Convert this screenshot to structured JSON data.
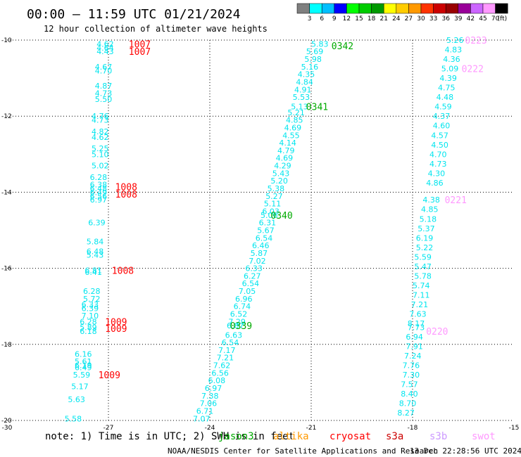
{
  "header": {
    "title": "00:00 – 11:59 UTC 01/21/2024",
    "subtitle": "12 hour collection of altimeter wave heights"
  },
  "colorbar": {
    "labels": [
      "3",
      "6",
      "9",
      "12",
      "15",
      "18",
      "21",
      "24",
      "27",
      "30",
      "33",
      "36",
      "39",
      "42",
      "45",
      "70"
    ],
    "unit": "(ft)",
    "colors": [
      "#7f7f7f",
      "#00ffff",
      "#00bfff",
      "#0000ff",
      "#00ff00",
      "#00cc00",
      "#009900",
      "#ffff00",
      "#ffcc00",
      "#ff9900",
      "#ff3300",
      "#cc0000",
      "#990000",
      "#990099",
      "#cc66ff",
      "#ff99ff",
      "#000000"
    ]
  },
  "footer": {
    "note": "note:  1) Time is in UTC;  2) SWH is in feet",
    "credit": "NOAA/NESDIS Center for Satellite Applications and Research",
    "timestamp": "13 Dec 22:28:56 UTC 2024"
  },
  "legend": [
    {
      "name": "jason3",
      "color": "#00aa00"
    },
    {
      "name": "altika",
      "color": "#ff9900"
    },
    {
      "name": "cryosat",
      "color": "#ff0000"
    },
    {
      "name": "s3a",
      "color": "#cc0000"
    },
    {
      "name": "s3b",
      "color": "#cc99ff"
    },
    {
      "name": "swot",
      "color": "#ff99ff"
    }
  ],
  "chart_data": {
    "type": "scatter",
    "title": "00:00 – 11:59 UTC 01/21/2024",
    "xlim": [
      -30,
      -15
    ],
    "ylim": [
      -20,
      -10
    ],
    "x_ticks": [
      "-30",
      "-27",
      "-24",
      "-21",
      "-18",
      "-15"
    ],
    "y_ticks": [
      "-10",
      "-12",
      "-14",
      "-16",
      "-18",
      "-20"
    ],
    "grid": true,
    "value_color": "#00e5ee",
    "time_colors": {
      "cryosat": "#ff0000",
      "jason3": "#00aa00",
      "swot": "#ff99ff"
    },
    "tracks": [
      {
        "satellite": "cryosat",
        "time_labels": [
          {
            "text": "1007",
            "x": -26.4,
            "y": -10.1
          },
          {
            "text": "1007",
            "x": -26.4,
            "y": -10.3
          },
          {
            "text": "1008",
            "x": -26.8,
            "y": -13.85
          },
          {
            "text": "1008",
            "x": -26.8,
            "y": -14.05
          },
          {
            "text": "1008",
            "x": -26.9,
            "y": -16.05
          },
          {
            "text": "1009",
            "x": -27.1,
            "y": -17.4
          },
          {
            "text": "1009",
            "x": -27.1,
            "y": -17.58
          },
          {
            "text": "1009",
            "x": -27.3,
            "y": -18.8
          }
        ],
        "values": [
          {
            "v": "4.62",
            "x": -27.35,
            "y": -10.1
          },
          {
            "v": "4.64",
            "x": -27.35,
            "y": -10.2
          },
          {
            "v": "4.43",
            "x": -27.35,
            "y": -10.3
          },
          {
            "v": "4.67",
            "x": -27.4,
            "y": -10.7
          },
          {
            "v": "4.70",
            "x": -27.4,
            "y": -10.8
          },
          {
            "v": "4.87",
            "x": -27.4,
            "y": -11.2
          },
          {
            "v": "4.73",
            "x": -27.4,
            "y": -11.4
          },
          {
            "v": "5.50",
            "x": -27.4,
            "y": -11.55
          },
          {
            "v": "4.76",
            "x": -27.5,
            "y": -12.0
          },
          {
            "v": "4.73",
            "x": -27.5,
            "y": -12.1
          },
          {
            "v": "4.82",
            "x": -27.5,
            "y": -12.4
          },
          {
            "v": "4.62",
            "x": -27.5,
            "y": -12.55
          },
          {
            "v": "5.25",
            "x": -27.5,
            "y": -12.85
          },
          {
            "v": "5.10",
            "x": -27.5,
            "y": -13.0
          },
          {
            "v": "5.02",
            "x": -27.5,
            "y": -13.3
          },
          {
            "v": "6.28",
            "x": -27.55,
            "y": -13.6
          },
          {
            "v": "6.38",
            "x": -27.55,
            "y": -13.8
          },
          {
            "v": "6.48",
            "x": -27.55,
            "y": -13.9
          },
          {
            "v": "6.49",
            "x": -27.55,
            "y": -14.0
          },
          {
            "v": "6.56",
            "x": -27.55,
            "y": -14.1
          },
          {
            "v": "6.97",
            "x": -27.55,
            "y": -14.2
          },
          {
            "v": "6.39",
            "x": -27.6,
            "y": -14.8
          },
          {
            "v": "5.84",
            "x": -27.65,
            "y": -15.3
          },
          {
            "v": "6.48",
            "x": -27.65,
            "y": -15.55
          },
          {
            "v": "5.43",
            "x": -27.65,
            "y": -15.65
          },
          {
            "v": "6.81",
            "x": -27.7,
            "y": -16.05
          },
          {
            "v": "6.41",
            "x": -27.7,
            "y": -16.1
          },
          {
            "v": "6.28",
            "x": -27.75,
            "y": -16.6
          },
          {
            "v": "5.72",
            "x": -27.75,
            "y": -16.8
          },
          {
            "v": "6.33",
            "x": -27.8,
            "y": -16.95
          },
          {
            "v": "6.39",
            "x": -27.8,
            "y": -17.05
          },
          {
            "v": "7.10",
            "x": -27.8,
            "y": -17.25
          },
          {
            "v": "6.28",
            "x": -27.85,
            "y": -17.4
          },
          {
            "v": "5.89",
            "x": -27.85,
            "y": -17.55
          },
          {
            "v": "6.18",
            "x": -27.85,
            "y": -17.65
          },
          {
            "v": "6.16",
            "x": -28.0,
            "y": -18.25
          },
          {
            "v": "5.61",
            "x": -28.0,
            "y": -18.45
          },
          {
            "v": "6.49",
            "x": -28.0,
            "y": -18.6
          },
          {
            "v": "6.19",
            "x": -28.0,
            "y": -18.55
          },
          {
            "v": "5.59",
            "x": -28.05,
            "y": -18.8
          },
          {
            "v": "5.17",
            "x": -28.1,
            "y": -19.1
          },
          {
            "v": "5.63",
            "x": -28.2,
            "y": -19.45
          },
          {
            "v": "5.58",
            "x": -28.3,
            "y": -19.95
          }
        ]
      },
      {
        "satellite": "jason3",
        "time_labels": [
          {
            "text": "0342",
            "x": -20.4,
            "y": -10.15
          },
          {
            "text": "0341",
            "x": -21.15,
            "y": -11.75
          },
          {
            "text": "0340",
            "x": -22.2,
            "y": -14.6
          },
          {
            "text": "0339",
            "x": -23.4,
            "y": -17.5
          }
        ],
        "values": [
          {
            "v": "5.83",
            "x": -21.0,
            "y": -10.1
          },
          {
            "v": "5.69",
            "x": -21.15,
            "y": -10.3
          },
          {
            "v": "5.98",
            "x": -21.2,
            "y": -10.5
          },
          {
            "v": "5.16",
            "x": -21.3,
            "y": -10.7
          },
          {
            "v": "4.35",
            "x": -21.4,
            "y": -10.9
          },
          {
            "v": "4.84",
            "x": -21.45,
            "y": -11.1
          },
          {
            "v": "4.91",
            "x": -21.5,
            "y": -11.3
          },
          {
            "v": "5.53",
            "x": -21.55,
            "y": -11.5
          },
          {
            "v": "5.13",
            "x": -21.6,
            "y": -11.75
          },
          {
            "v": "5.21",
            "x": -21.7,
            "y": -11.9
          },
          {
            "v": "4.85",
            "x": -21.75,
            "y": -12.1
          },
          {
            "v": "4.69",
            "x": -21.8,
            "y": -12.3
          },
          {
            "v": "4.55",
            "x": -21.85,
            "y": -12.5
          },
          {
            "v": "4.14",
            "x": -21.95,
            "y": -12.7
          },
          {
            "v": "4.79",
            "x": -22.0,
            "y": -12.9
          },
          {
            "v": "4.69",
            "x": -22.05,
            "y": -13.1
          },
          {
            "v": "4.29",
            "x": -22.1,
            "y": -13.3
          },
          {
            "v": "5.43",
            "x": -22.15,
            "y": -13.5
          },
          {
            "v": "5.20",
            "x": -22.2,
            "y": -13.7
          },
          {
            "v": "5.38",
            "x": -22.3,
            "y": -13.9
          },
          {
            "v": "5.27",
            "x": -22.35,
            "y": -14.1
          },
          {
            "v": "5.11",
            "x": -22.4,
            "y": -14.3
          },
          {
            "v": "6.03",
            "x": -22.45,
            "y": -14.5
          },
          {
            "v": "5.06",
            "x": -22.5,
            "y": -14.6
          },
          {
            "v": "6.31",
            "x": -22.55,
            "y": -14.8
          },
          {
            "v": "5.67",
            "x": -22.6,
            "y": -15.0
          },
          {
            "v": "6.54",
            "x": -22.65,
            "y": -15.2
          },
          {
            "v": "6.46",
            "x": -22.75,
            "y": -15.4
          },
          {
            "v": "5.87",
            "x": -22.8,
            "y": -15.6
          },
          {
            "v": "7.02",
            "x": -22.85,
            "y": -15.8
          },
          {
            "v": "6.33",
            "x": -22.95,
            "y": -16.0
          },
          {
            "v": "6.27",
            "x": -23.0,
            "y": -16.2
          },
          {
            "v": "6.54",
            "x": -23.05,
            "y": -16.4
          },
          {
            "v": "7.05",
            "x": -23.15,
            "y": -16.6
          },
          {
            "v": "6.96",
            "x": -23.25,
            "y": -16.8
          },
          {
            "v": "6.74",
            "x": -23.3,
            "y": -17.0
          },
          {
            "v": "6.52",
            "x": -23.4,
            "y": -17.2
          },
          {
            "v": "7.29",
            "x": -23.45,
            "y": -17.4
          },
          {
            "v": "6.87",
            "x": -23.5,
            "y": -17.5
          },
          {
            "v": "6.63",
            "x": -23.55,
            "y": -17.75
          },
          {
            "v": "6.54",
            "x": -23.65,
            "y": -17.95
          },
          {
            "v": "7.17",
            "x": -23.75,
            "y": -18.15
          },
          {
            "v": "7.21",
            "x": -23.8,
            "y": -18.35
          },
          {
            "v": "7.62",
            "x": -23.9,
            "y": -18.55
          },
          {
            "v": "6.56",
            "x": -23.95,
            "y": -18.75
          },
          {
            "v": "6.08",
            "x": -24.05,
            "y": -18.95
          },
          {
            "v": "6.97",
            "x": -24.15,
            "y": -19.15
          },
          {
            "v": "7.38",
            "x": -24.25,
            "y": -19.35
          },
          {
            "v": "7.06",
            "x": -24.3,
            "y": -19.55
          },
          {
            "v": "6.71",
            "x": -24.4,
            "y": -19.75
          },
          {
            "v": "7.07",
            "x": -24.5,
            "y": -19.95
          }
        ]
      },
      {
        "satellite": "swot",
        "time_labels": [
          {
            "text": "0223",
            "x": -16.45,
            "y": -10.0
          },
          {
            "text": "0222",
            "x": -16.55,
            "y": -10.75
          },
          {
            "text": "0221",
            "x": -17.05,
            "y": -14.2
          },
          {
            "text": "0220",
            "x": -17.6,
            "y": -17.65
          }
        ],
        "values": [
          {
            "v": "5.26",
            "x": -17.0,
            "y": -10.0
          },
          {
            "v": "4.83",
            "x": -17.05,
            "y": -10.25
          },
          {
            "v": "4.36",
            "x": -17.1,
            "y": -10.5
          },
          {
            "v": "5.09",
            "x": -17.15,
            "y": -10.75
          },
          {
            "v": "4.39",
            "x": -17.2,
            "y": -11.0
          },
          {
            "v": "4.75",
            "x": -17.25,
            "y": -11.25
          },
          {
            "v": "4.48",
            "x": -17.3,
            "y": -11.5
          },
          {
            "v": "4.59",
            "x": -17.35,
            "y": -11.75
          },
          {
            "v": "4.37",
            "x": -17.4,
            "y": -12.0
          },
          {
            "v": "4.60",
            "x": -17.4,
            "y": -12.25
          },
          {
            "v": "4.57",
            "x": -17.45,
            "y": -12.5
          },
          {
            "v": "4.50",
            "x": -17.45,
            "y": -12.75
          },
          {
            "v": "4.70",
            "x": -17.5,
            "y": -13.0
          },
          {
            "v": "4.73",
            "x": -17.5,
            "y": -13.25
          },
          {
            "v": "4.30",
            "x": -17.55,
            "y": -13.5
          },
          {
            "v": "4.86",
            "x": -17.6,
            "y": -13.75
          },
          {
            "v": "4.38",
            "x": -17.7,
            "y": -14.2
          },
          {
            "v": "4.85",
            "x": -17.75,
            "y": -14.45
          },
          {
            "v": "5.18",
            "x": -17.8,
            "y": -14.7
          },
          {
            "v": "5.37",
            "x": -17.85,
            "y": -14.95
          },
          {
            "v": "6.19",
            "x": -17.9,
            "y": -15.2
          },
          {
            "v": "5.22",
            "x": -17.9,
            "y": -15.45
          },
          {
            "v": "5.59",
            "x": -17.95,
            "y": -15.7
          },
          {
            "v": "5.47",
            "x": -17.95,
            "y": -15.95
          },
          {
            "v": "5.78",
            "x": -17.95,
            "y": -16.2
          },
          {
            "v": "5.74",
            "x": -18.0,
            "y": -16.45
          },
          {
            "v": "7.11",
            "x": -18.0,
            "y": -16.7
          },
          {
            "v": "7.21",
            "x": -18.05,
            "y": -16.95
          },
          {
            "v": "7.63",
            "x": -18.1,
            "y": -17.2
          },
          {
            "v": "8.17",
            "x": -18.15,
            "y": -17.45
          },
          {
            "v": "7.73",
            "x": -18.15,
            "y": -17.55
          },
          {
            "v": "6.94",
            "x": -18.2,
            "y": -17.8
          },
          {
            "v": "7.91",
            "x": -18.2,
            "y": -18.05
          },
          {
            "v": "7.24",
            "x": -18.25,
            "y": -18.3
          },
          {
            "v": "7.76",
            "x": -18.3,
            "y": -18.55
          },
          {
            "v": "7.30",
            "x": -18.3,
            "y": -18.8
          },
          {
            "v": "7.57",
            "x": -18.35,
            "y": -19.05
          },
          {
            "v": "8.40",
            "x": -18.35,
            "y": -19.3
          },
          {
            "v": "8.70",
            "x": -18.4,
            "y": -19.55
          },
          {
            "v": "8.27",
            "x": -18.45,
            "y": -19.8
          }
        ]
      }
    ]
  }
}
